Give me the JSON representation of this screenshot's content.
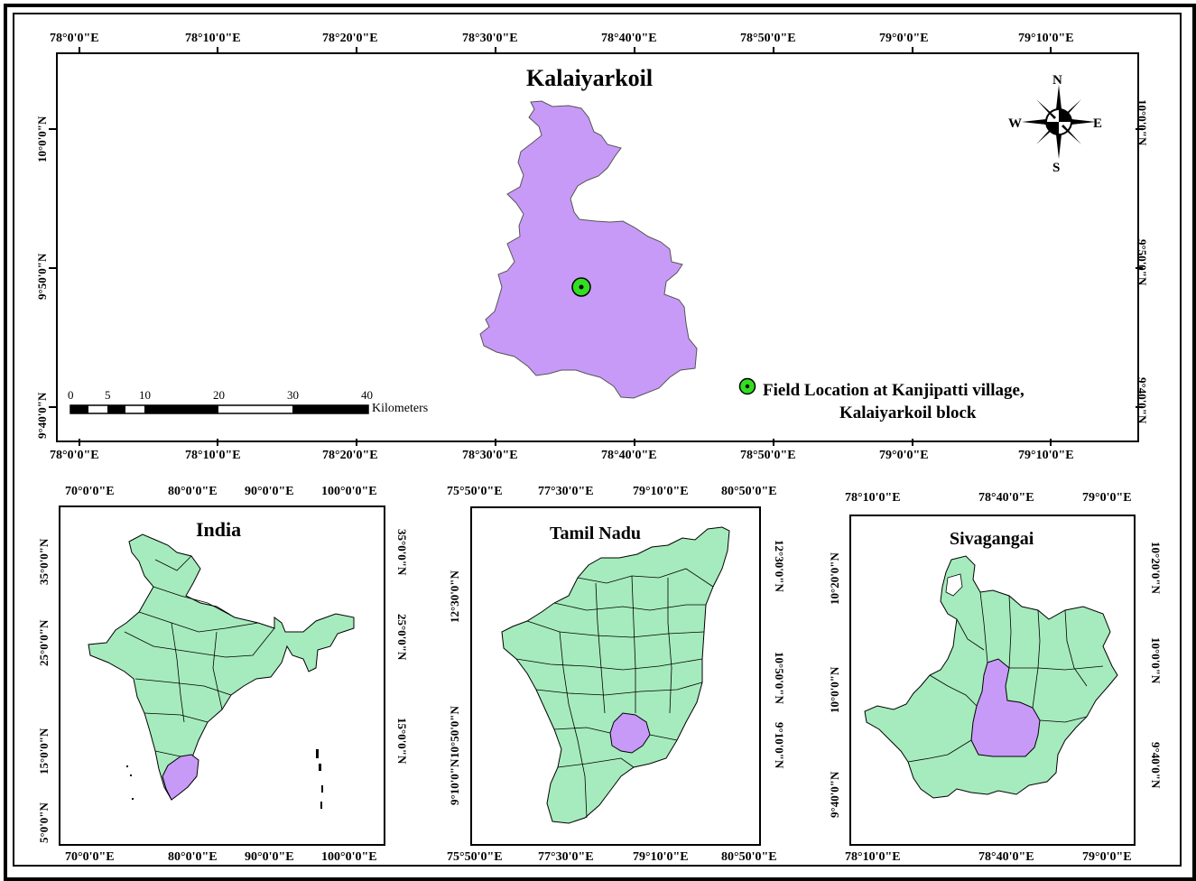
{
  "main_map": {
    "title": "Kalaiyarkoil",
    "x_labels": [
      "78°0'0\"E",
      "78°10'0\"E",
      "78°20'0\"E",
      "78°30'0\"E",
      "78°40'0\"E",
      "78°50'0\"E",
      "79°0'0\"E",
      "79°10'0\"E"
    ],
    "y_labels": [
      "10°0'0\"N",
      "9°50'0\"N",
      "9°40'0\"N"
    ],
    "fill_color": "#c89af7",
    "scale_bar": {
      "ticks": [
        "0",
        "5",
        "10",
        "20",
        "30",
        "40"
      ],
      "unit": "Kilometers"
    },
    "north_arrow": {
      "n": "N",
      "s": "S",
      "e": "E",
      "w": "W"
    },
    "legend": {
      "line1": "Field Location at Kanjipatti village,",
      "line2": "Kalaiyarkoil block",
      "marker_color": "#33dd22",
      "icon": "green-circle-marker"
    }
  },
  "inset_india": {
    "title": "India",
    "x_labels": [
      "70°0'0\"E",
      "80°0'0\"E",
      "90°0'0\"E",
      "100°0'0\"E"
    ],
    "y_labels": [
      "35°0'0\"N",
      "25°0'0\"N",
      "15°0'0\"N",
      "5°0'0\"N"
    ],
    "fill_color": "#a6ebbd",
    "highlight_color": "#c89af7"
  },
  "inset_tamil_nadu": {
    "title": "Tamil Nadu",
    "x_labels": [
      "75°50'0\"E",
      "77°30'0\"E",
      "79°10'0\"E",
      "80°50'0\"E"
    ],
    "y_labels": [
      "12°30'0\"N",
      "10°50'0\"N",
      "9°10'0\"N"
    ],
    "fill_color": "#a6ebbd",
    "highlight_color": "#c89af7"
  },
  "inset_sivagangai": {
    "title": "Sivagangai",
    "x_labels": [
      "78°10'0\"E",
      "78°40'0\"E",
      "79°0'0\"E"
    ],
    "y_labels": [
      "10°20'0\"N",
      "10°0'0\"N",
      "9°40'0\"N"
    ],
    "fill_color": "#a6ebbd",
    "highlight_color": "#c89af7"
  }
}
